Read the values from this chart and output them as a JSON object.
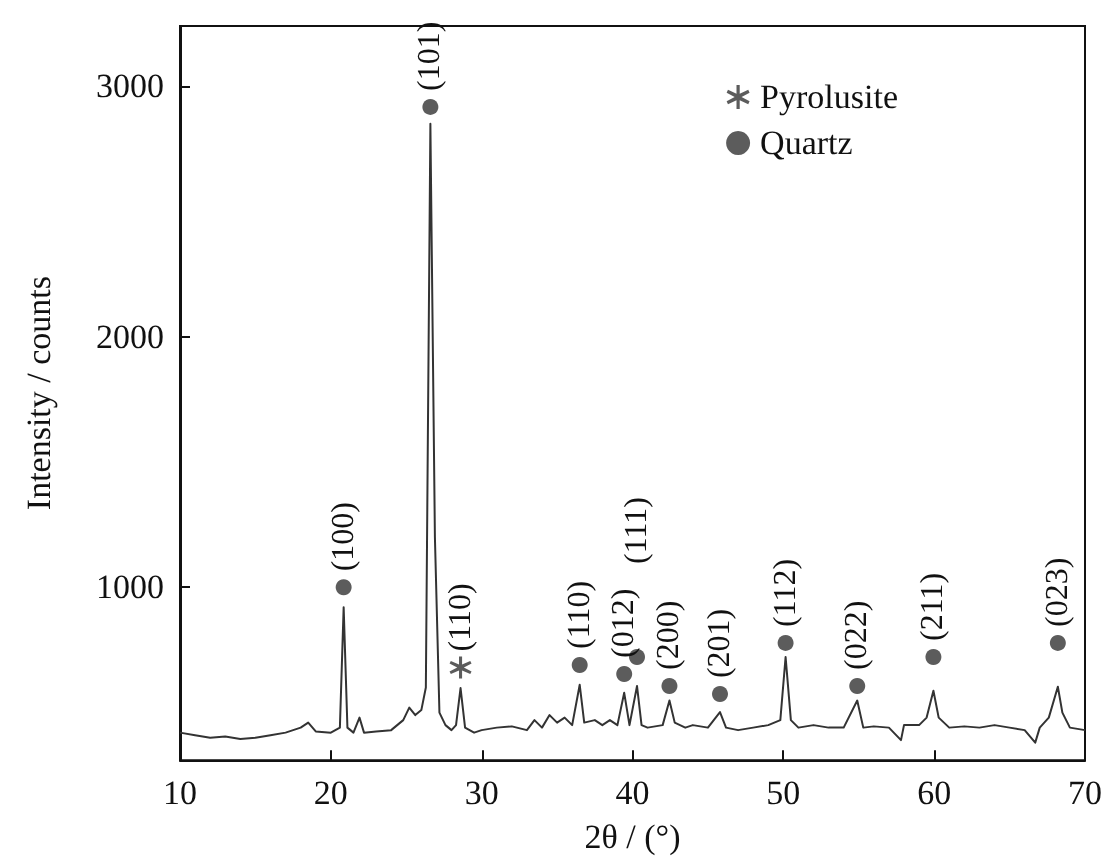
{
  "chart_data": {
    "type": "line",
    "xlabel": "2θ / (°)",
    "ylabel": "Intensity / counts",
    "xlim": [
      10,
      70
    ],
    "xticks": [
      10,
      20,
      30,
      40,
      50,
      60,
      70
    ],
    "ylim": [
      310,
      3240
    ],
    "yticks": [
      1000,
      2000,
      3000
    ],
    "grid": false,
    "legend": "top right",
    "annotations": [
      {
        "text": "(110)",
        "x": 28.6,
        "y": 680
      },
      {
        "text": "(100)",
        "x": 20.85,
        "y": 1000
      },
      {
        "text": "(101)",
        "x": 26.6,
        "y": 2917
      },
      {
        "text": "(110)",
        "x": 36.5,
        "y": 690
      },
      {
        "text": "(012)",
        "x": 39.45,
        "y": 654
      },
      {
        "text": "(111)",
        "x": 40.3,
        "y": 722
      },
      {
        "text": "(200)",
        "x": 42.45,
        "y": 606
      },
      {
        "text": "(201)",
        "x": 45.8,
        "y": 574
      },
      {
        "text": "(112)",
        "x": 50.15,
        "y": 778
      },
      {
        "text": "(022)",
        "x": 54.9,
        "y": 606
      },
      {
        "text": "(211)",
        "x": 59.95,
        "y": 722
      },
      {
        "text": "(023)",
        "x": 68.2,
        "y": 778
      }
    ],
    "series": [
      {
        "color": "#333333",
        "marker": "none",
        "x": [
          10,
          11,
          12,
          13,
          14,
          15,
          16,
          17,
          18,
          18.5,
          19,
          20,
          20.6,
          20.85,
          21.1,
          21.5,
          21.9,
          22.2,
          23,
          24,
          24.8,
          25.2,
          25.6,
          26,
          26.3,
          26.6,
          26.9,
          27.2,
          27.6,
          28,
          28.3,
          28.6,
          28.9,
          29.5,
          30,
          31,
          32,
          33,
          33.5,
          34,
          34.5,
          35,
          35.5,
          36,
          36.5,
          36.8,
          37.5,
          38,
          38.5,
          39,
          39.45,
          39.8,
          40.3,
          40.6,
          41,
          42,
          42.45,
          42.8,
          43.5,
          44,
          45,
          45.8,
          46.2,
          47,
          48,
          49,
          49.8,
          50.15,
          50.5,
          51,
          52,
          53,
          54,
          54.9,
          55.3,
          56,
          57,
          57.8,
          58,
          59,
          59.5,
          59.95,
          60.3,
          61,
          62,
          63,
          64,
          65,
          66,
          66.7,
          67,
          67.6,
          68.2,
          68.5,
          69,
          70
        ],
        "values": [
          420,
          410,
          400,
          405,
          395,
          400,
          410,
          420,
          440,
          460,
          425,
          420,
          440,
          920,
          440,
          420,
          480,
          420,
          425,
          430,
          470,
          520,
          490,
          510,
          600,
          2850,
          1200,
          500,
          450,
          430,
          450,
          598,
          440,
          420,
          430,
          440,
          445,
          430,
          470,
          440,
          490,
          460,
          480,
          450,
          611,
          460,
          470,
          450,
          470,
          450,
          579,
          450,
          606,
          450,
          440,
          450,
          548,
          460,
          440,
          450,
          440,
          502,
          440,
          430,
          440,
          450,
          470,
          722,
          470,
          440,
          450,
          440,
          440,
          548,
          440,
          445,
          440,
          390,
          450,
          450,
          480,
          587,
          480,
          440,
          445,
          440,
          450,
          440,
          430,
          380,
          440,
          480,
          603,
          500,
          440,
          430
        ]
      },
      {
        "type": "scatter",
        "name": "Pyrolusite",
        "color": "#333333",
        "marker": "star",
        "x": [
          28.6
        ],
        "values": [
          680
        ]
      },
      {
        "type": "scatter",
        "name": "Quartz",
        "color": "#333333",
        "marker": "circle",
        "x": [
          20.85,
          26.6,
          36.5,
          39.45,
          40.3,
          42.45,
          45.8,
          50.15,
          54.9,
          59.95,
          68.2
        ],
        "values": [
          1000,
          2917,
          690,
          654,
          722,
          606,
          574,
          778,
          606,
          722,
          778
        ]
      }
    ]
  }
}
